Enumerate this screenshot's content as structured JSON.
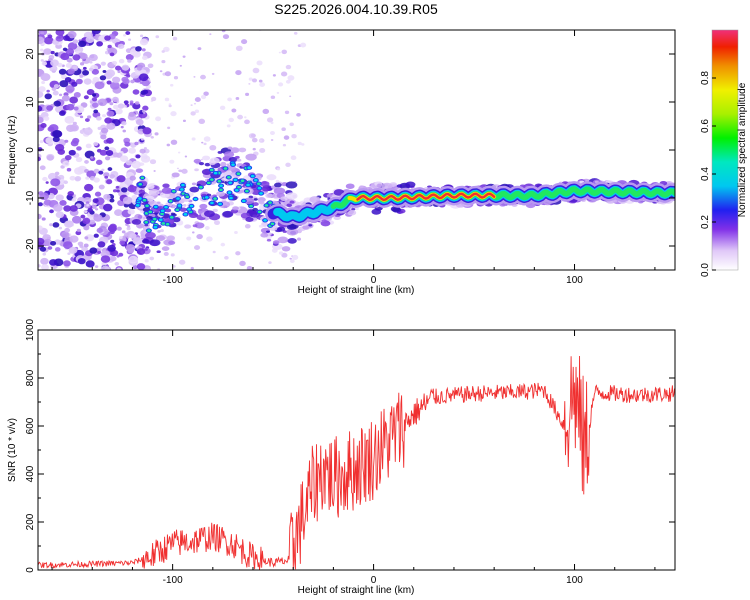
{
  "chart_data": [
    {
      "type": "heatmap",
      "title": "S225.2026.004.10.39.R05",
      "xlabel": "Height of straight line (km)",
      "ylabel": "Frequency (Hz)",
      "xlim": [
        -167,
        150
      ],
      "ylim": [
        -25,
        25
      ],
      "xticks": [
        -100,
        0,
        100
      ],
      "yticks": [
        20,
        10,
        0,
        -10,
        -20
      ],
      "colorbar": {
        "label": "Normalized spectral amplitude",
        "range": [
          0,
          1
        ],
        "ticks": [
          "0.0",
          "0.2",
          "0.4",
          "0.6",
          "0.8"
        ]
      },
      "ridge_frequency": [
        {
          "x": -115,
          "y": -13
        },
        {
          "x": -105,
          "y": -15
        },
        {
          "x": -95,
          "y": -10
        },
        {
          "x": -80,
          "y": -8
        },
        {
          "x": -70,
          "y": -6
        },
        {
          "x": -60,
          "y": -8
        },
        {
          "x": -50,
          "y": -13
        },
        {
          "x": -40,
          "y": -14
        },
        {
          "x": -30,
          "y": -13
        },
        {
          "x": -20,
          "y": -12
        },
        {
          "x": -10,
          "y": -10
        },
        {
          "x": 0,
          "y": -10
        },
        {
          "x": 10,
          "y": -10
        },
        {
          "x": 40,
          "y": -9.5
        },
        {
          "x": 80,
          "y": -9.5
        },
        {
          "x": 100,
          "y": -8.5
        },
        {
          "x": 150,
          "y": -9
        }
      ]
    },
    {
      "type": "line",
      "xlabel": "Height of straight line (km)",
      "ylabel": "SNR (10 * v/v)",
      "xlim": [
        -167,
        150
      ],
      "ylim": [
        0,
        1000
      ],
      "xticks": [
        -100,
        0,
        100
      ],
      "yticks": [
        0,
        200,
        400,
        600,
        800,
        1000
      ],
      "series": [
        {
          "name": "SNR",
          "color": "#f03030",
          "x": [
            -167,
            -140,
            -120,
            -110,
            -100,
            -90,
            -80,
            -70,
            -60,
            -50,
            -42,
            -38,
            -30,
            -25,
            -20,
            -10,
            0,
            10,
            20,
            30,
            50,
            70,
            85,
            95,
            100,
            105,
            110,
            130,
            150
          ],
          "values": [
            20,
            25,
            30,
            60,
            110,
            120,
            140,
            110,
            50,
            30,
            40,
            150,
            350,
            420,
            380,
            420,
            470,
            560,
            650,
            720,
            735,
            740,
            750,
            600,
            750,
            500,
            740,
            730,
            735
          ]
        }
      ]
    }
  ]
}
